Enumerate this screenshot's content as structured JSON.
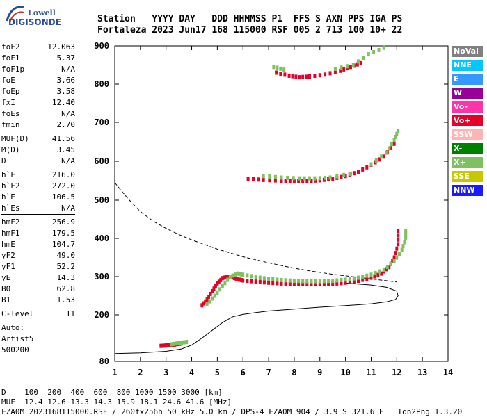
{
  "logo": {
    "line1": "Lowell",
    "line2": "DIGISONDE"
  },
  "header": {
    "row1": "Station   YYYY DAY   DDD HHMMSS P1  FFS S AXN PPS IGA PS",
    "row2": "Fortaleza 2023 Jun17 168 115000 RSF 005 2 713 100 10+ 22"
  },
  "params": [
    {
      "label": "foF2",
      "value": "12.063"
    },
    {
      "label": "foF1",
      "value": "5.37"
    },
    {
      "label": "foF1p",
      "value": "N/A"
    },
    {
      "label": "foE",
      "value": "3.66"
    },
    {
      "label": "foEp",
      "value": "3.58"
    },
    {
      "label": "fxI",
      "value": "12.40"
    },
    {
      "label": "foEs",
      "value": "N/A"
    },
    {
      "label": "fmin",
      "value": "2.70"
    },
    {
      "sep": true
    },
    {
      "label": "MUF(D)",
      "value": "41.56"
    },
    {
      "label": "M(D)",
      "value": "3.45"
    },
    {
      "label": "D",
      "value": "N/A"
    },
    {
      "sep": true
    },
    {
      "label": "h`F",
      "value": "216.0"
    },
    {
      "label": "h`F2",
      "value": "272.0"
    },
    {
      "label": "h`E",
      "value": "106.5"
    },
    {
      "label": "h`Es",
      "value": "N/A"
    },
    {
      "sep": true
    },
    {
      "label": "hmF2",
      "value": "256.9"
    },
    {
      "label": "hmF1",
      "value": "179.5"
    },
    {
      "label": "hmE",
      "value": "104.7"
    },
    {
      "label": "yF2",
      "value": "49.0"
    },
    {
      "label": "yF1",
      "value": "52.2"
    },
    {
      "label": "yE",
      "value": "14.3"
    },
    {
      "label": "B0",
      "value": "62.8"
    },
    {
      "label": "B1",
      "value": "1.53"
    },
    {
      "sep": true
    },
    {
      "label": "C-level",
      "value": "11"
    },
    {
      "sep": true
    },
    {
      "text": "Auto:"
    },
    {
      "text": "Artist5"
    },
    {
      "text": "500200"
    }
  ],
  "legend": [
    {
      "label": "NoVal",
      "bg": "#808080",
      "fg": "#ffffff"
    },
    {
      "label": "NNE",
      "bg": "#00c8ff",
      "fg": "#ffffff"
    },
    {
      "label": "E",
      "bg": "#3399ff",
      "fg": "#ffffff"
    },
    {
      "label": "W",
      "bg": "#990099",
      "fg": "#ffffff"
    },
    {
      "label": "Vo-",
      "bg": "#ff33aa",
      "fg": "#ffffff"
    },
    {
      "label": "Vo+",
      "bg": "#e60028",
      "fg": "#ffffff"
    },
    {
      "label": "SSW",
      "bg": "#ffb3b3",
      "fg": "#ffffff"
    },
    {
      "label": "X-",
      "bg": "#008000",
      "fg": "#ffffff"
    },
    {
      "label": "X+",
      "bg": "#80c060",
      "fg": "#ffffff"
    },
    {
      "label": "SSE",
      "bg": "#c8c800",
      "fg": "#ffffff"
    },
    {
      "label": "NNW",
      "bg": "#1a1aff",
      "fg": "#ffffff"
    }
  ],
  "footer": {
    "line1": "D    100  200  400  600  800 1000 1500 3000 [km]",
    "line2": "MUF  12.4 12.6 13.3 14.3 15.9 18.1 24.6 41.6 [MHz]",
    "line3": "FZA0M_2023168115000.RSF / 260fx256h 50 kHz 5.0 km / DPS-4 FZA0M 904 / 3.9 S 321.6 E   Ion2Png 1.3.20"
  },
  "chart_data": {
    "type": "scatter",
    "title": "",
    "xlabel": "",
    "ylabel": "",
    "xlim": [
      1,
      14
    ],
    "ylim": [
      80,
      900
    ],
    "x_ticks": [
      1,
      2,
      3,
      4,
      5,
      6,
      7,
      8,
      9,
      10,
      11,
      12,
      13,
      14
    ],
    "y_ticks": [
      80,
      200,
      300,
      400,
      500,
      600,
      700,
      800,
      900
    ],
    "y_scale": "nonlinear",
    "grid": false,
    "legend_position": "right",
    "series": [
      {
        "name": "Vo+",
        "color": "#e60028",
        "points": [
          [
            4.4,
            225
          ],
          [
            4.6,
            240
          ],
          [
            4.8,
            262
          ],
          [
            5.0,
            282
          ],
          [
            5.2,
            296
          ],
          [
            5.4,
            300
          ],
          [
            5.6,
            298
          ],
          [
            5.8,
            293
          ],
          [
            6.0,
            290
          ],
          [
            6.5,
            287
          ],
          [
            7.0,
            284
          ],
          [
            7.5,
            282
          ],
          [
            8.0,
            280
          ],
          [
            8.5,
            280
          ],
          [
            9.0,
            280
          ],
          [
            9.5,
            281
          ],
          [
            10.0,
            284
          ],
          [
            10.5,
            289
          ],
          [
            11.0,
            297
          ],
          [
            11.4,
            308
          ],
          [
            11.7,
            325
          ],
          [
            11.9,
            350
          ],
          [
            12.05,
            385
          ],
          [
            12.05,
            420
          ],
          [
            6.2,
            555
          ],
          [
            6.8,
            552
          ],
          [
            7.5,
            550
          ],
          [
            8.0,
            548
          ],
          [
            8.5,
            549
          ],
          [
            9.0,
            551
          ],
          [
            9.5,
            555
          ],
          [
            10.0,
            562
          ],
          [
            10.5,
            573
          ],
          [
            11.0,
            590
          ],
          [
            11.5,
            612
          ],
          [
            11.9,
            645
          ],
          [
            7.3,
            830
          ],
          [
            7.8,
            822
          ],
          [
            8.2,
            818
          ],
          [
            8.6,
            820
          ],
          [
            9.2,
            825
          ],
          [
            9.8,
            835
          ],
          [
            10.2,
            845
          ],
          [
            10.6,
            855
          ]
        ]
      },
      {
        "name": "X+",
        "color": "#80c060",
        "points": [
          [
            4.6,
            228
          ],
          [
            4.9,
            250
          ],
          [
            5.2,
            275
          ],
          [
            5.5,
            300
          ],
          [
            5.8,
            308
          ],
          [
            6.0,
            305
          ],
          [
            6.5,
            299
          ],
          [
            7.0,
            294
          ],
          [
            7.5,
            291
          ],
          [
            8.0,
            289
          ],
          [
            8.5,
            288
          ],
          [
            9.0,
            288
          ],
          [
            9.5,
            289
          ],
          [
            10.0,
            292
          ],
          [
            10.5,
            297
          ],
          [
            11.0,
            305
          ],
          [
            11.5,
            318
          ],
          [
            11.9,
            340
          ],
          [
            12.2,
            370
          ],
          [
            12.35,
            400
          ],
          [
            12.35,
            420
          ],
          [
            6.8,
            562
          ],
          [
            7.5,
            558
          ],
          [
            8.2,
            556
          ],
          [
            8.8,
            556
          ],
          [
            9.4,
            558
          ],
          [
            10.2,
            568
          ],
          [
            11.0,
            592
          ],
          [
            11.6,
            622
          ],
          [
            11.9,
            655
          ],
          [
            12.05,
            678
          ],
          [
            7.2,
            845
          ],
          [
            7.6,
            838
          ],
          [
            9.6,
            840
          ],
          [
            10.3,
            850
          ],
          [
            10.9,
            878
          ],
          [
            11.5,
            895
          ]
        ]
      },
      {
        "name": "Vo+ (E region)",
        "color": "#e60028",
        "points": [
          [
            2.8,
            120
          ],
          [
            3.0,
            121
          ],
          [
            3.2,
            122
          ],
          [
            3.4,
            124
          ],
          [
            3.6,
            126
          ]
        ]
      },
      {
        "name": "X+ (E region)",
        "color": "#80c060",
        "points": [
          [
            3.2,
            124
          ],
          [
            3.5,
            127
          ],
          [
            3.8,
            130
          ]
        ]
      }
    ],
    "lines": [
      {
        "name": "profile",
        "style": "solid",
        "points": [
          [
            1.0,
            100
          ],
          [
            2.0,
            102
          ],
          [
            3.0,
            106
          ],
          [
            3.6,
            112
          ],
          [
            4.0,
            122
          ],
          [
            4.4,
            140
          ],
          [
            4.8,
            160
          ],
          [
            5.2,
            180
          ],
          [
            5.6,
            195
          ],
          [
            6.0,
            201
          ],
          [
            6.5,
            206
          ],
          [
            7.0,
            210
          ],
          [
            8.0,
            215
          ],
          [
            9.0,
            220
          ],
          [
            10.0,
            224
          ],
          [
            11.0,
            229
          ],
          [
            11.6,
            234
          ],
          [
            11.95,
            240
          ],
          [
            12.05,
            250
          ],
          [
            12.0,
            262
          ],
          [
            11.6,
            272
          ],
          [
            11.0,
            278
          ],
          [
            10.0,
            283
          ]
        ]
      },
      {
        "name": "MUF-D curve",
        "style": "dashed",
        "points": [
          [
            1.0,
            545
          ],
          [
            1.5,
            505
          ],
          [
            2.0,
            470
          ],
          [
            2.5,
            445
          ],
          [
            3.0,
            426
          ],
          [
            3.5,
            410
          ],
          [
            4.0,
            396
          ],
          [
            4.5,
            384
          ],
          [
            5.0,
            372
          ],
          [
            5.5,
            362
          ],
          [
            6.0,
            352
          ],
          [
            6.5,
            344
          ],
          [
            7.0,
            336
          ],
          [
            7.5,
            329
          ],
          [
            8.0,
            322
          ],
          [
            8.5,
            316
          ],
          [
            9.0,
            311
          ],
          [
            9.5,
            306
          ],
          [
            10.0,
            302
          ],
          [
            10.5,
            298
          ],
          [
            11.0,
            294
          ],
          [
            11.5,
            290
          ],
          [
            12.0,
            286
          ]
        ]
      }
    ]
  }
}
